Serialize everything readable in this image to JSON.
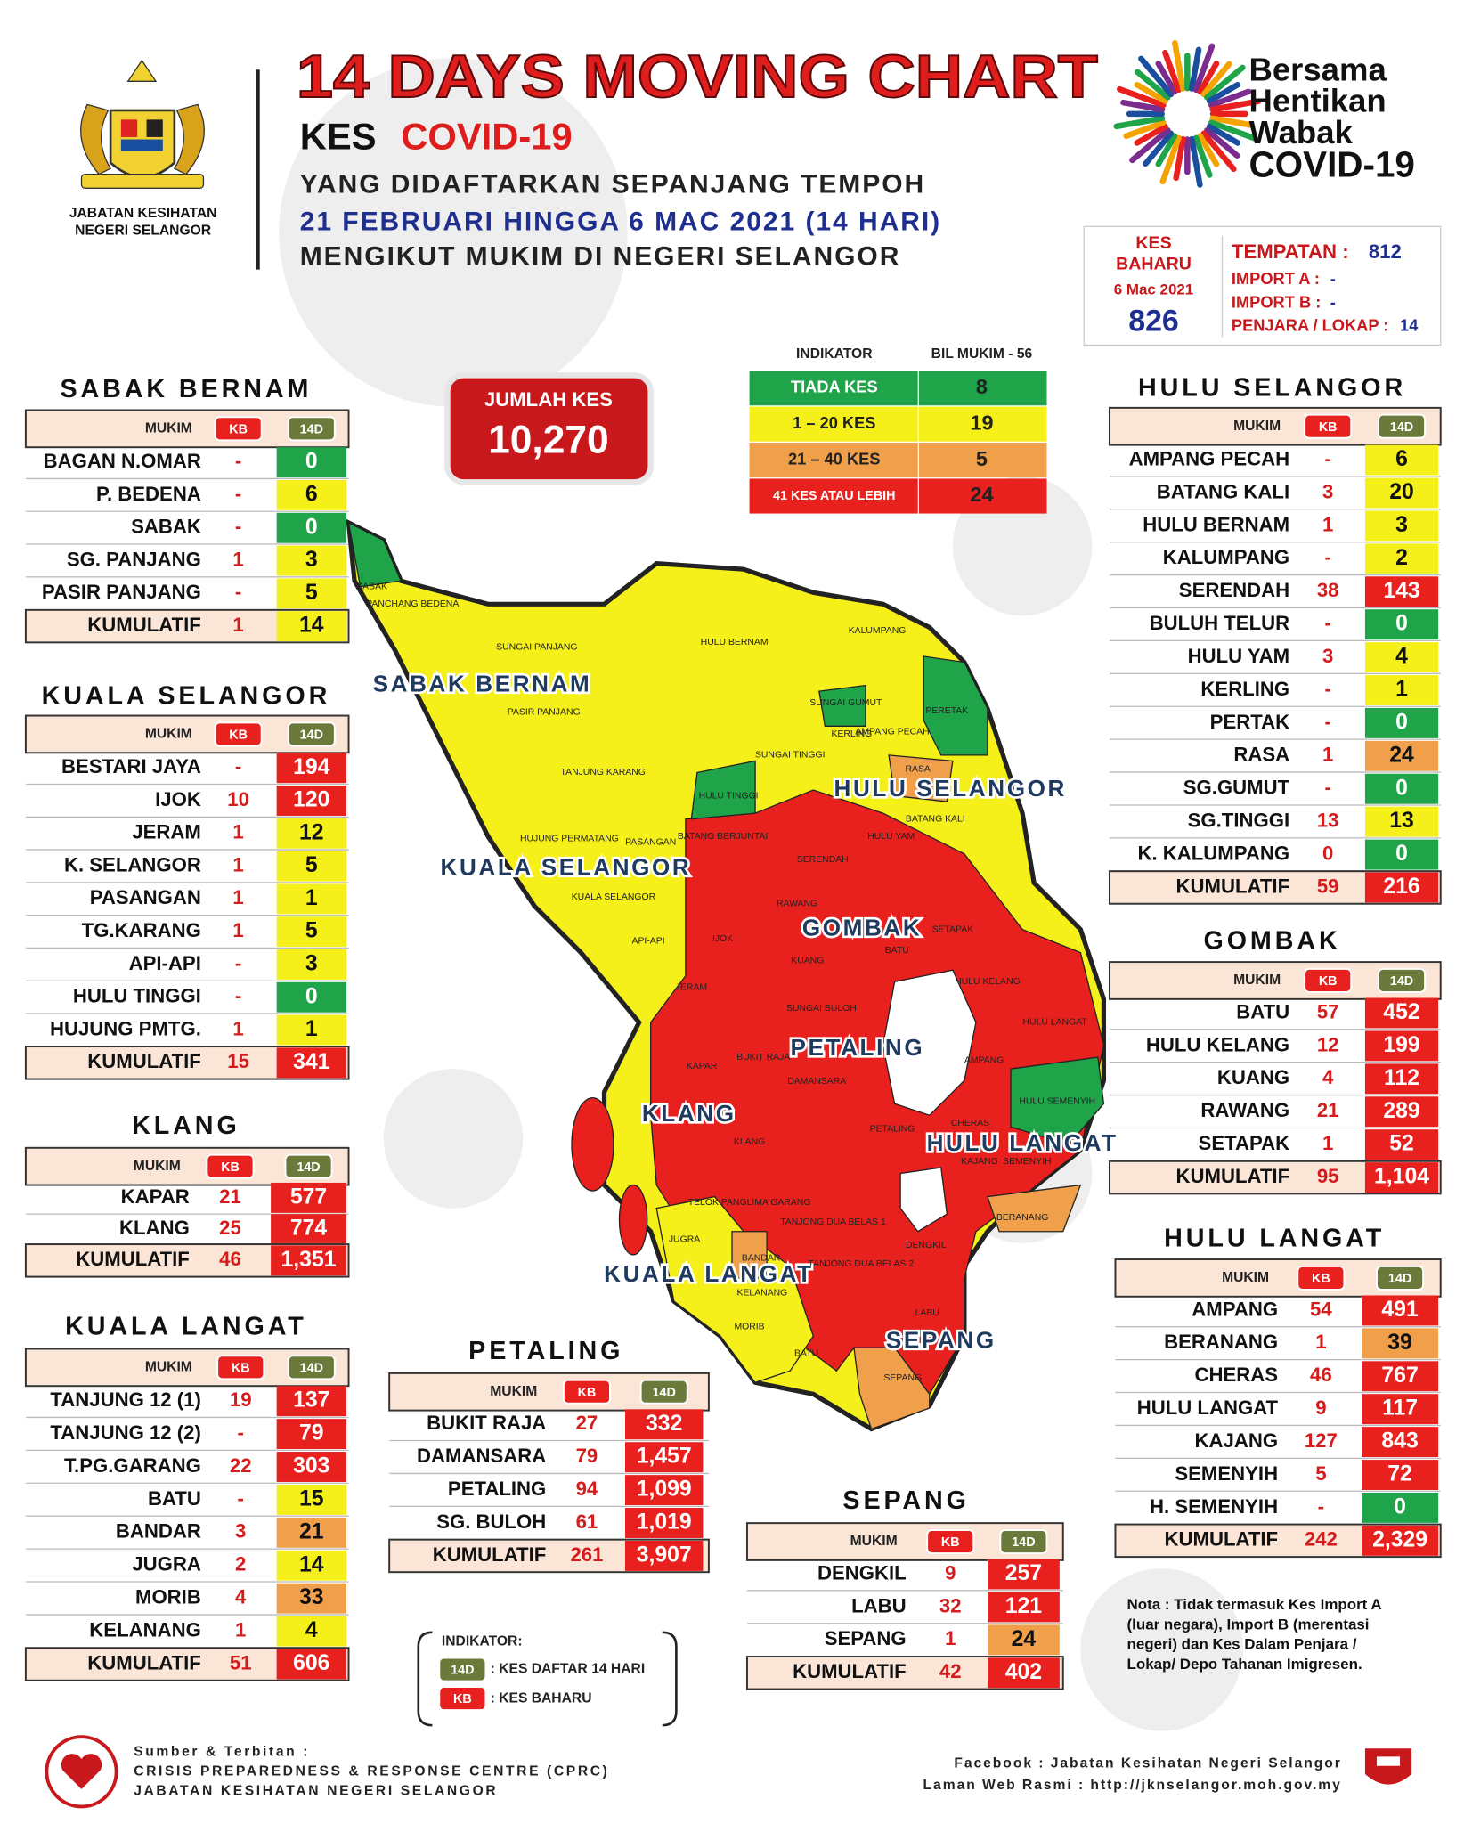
{
  "header": {
    "agency": [
      "JABATAN KESIHATAN",
      "NEGERI SELANGOR"
    ],
    "title": "14 DAYS MOVING CHART",
    "subtitle_prefix": "KES",
    "subtitle_main": "COVID-19",
    "lines": [
      "YANG DIDAFTARKAN SEPANJANG TEMPOH",
      "21 FEBRUARI HINGGA 6 MAC 2021 (14 HARI)",
      "MENGIKUT MUKIM DI NEGERI SELANGOR"
    ],
    "campaign": [
      "Bersama",
      "Hentikan",
      "Wabak",
      "COVID-19"
    ]
  },
  "new_cases": {
    "label": [
      "KES",
      "BAHARU"
    ],
    "date": "6 Mac 2021",
    "total": 826,
    "breakdown": [
      [
        "TEMPATAN :",
        812
      ],
      [
        "IMPORT A :",
        "-"
      ],
      [
        "IMPORT B :",
        "-"
      ],
      [
        "PENJARA / LOKAP :",
        14
      ]
    ]
  },
  "total_cases": {
    "label": "JUMLAH KES",
    "value": "10,270"
  },
  "indicator": {
    "headers": [
      "INDIKATOR",
      "BIL MUKIM - 56"
    ],
    "rows": [
      [
        "TIADA KES",
        8
      ],
      [
        "1 – 20 KES",
        19
      ],
      [
        "21 – 40 KES",
        5
      ],
      [
        "41 KES ATAU LEBIH",
        24
      ]
    ]
  },
  "table_header": [
    "MUKIM",
    "KB",
    "14D"
  ],
  "districts": [
    {
      "name": "SABAK BERNAM",
      "rows": [
        [
          "BAGAN N.OMAR",
          "-",
          0
        ],
        [
          "P. BEDENA",
          "-",
          6
        ],
        [
          "SABAK",
          "-",
          0
        ],
        [
          "SG. PANJANG",
          1,
          3
        ],
        [
          "PASIR PANJANG",
          "-",
          5
        ]
      ],
      "total": [
        "KUMULATIF",
        1,
        14
      ]
    },
    {
      "name": "KUALA SELANGOR",
      "rows": [
        [
          "BESTARI JAYA",
          "-",
          194
        ],
        [
          "IJOK",
          10,
          120
        ],
        [
          "JERAM",
          1,
          12
        ],
        [
          "K. SELANGOR",
          1,
          5
        ],
        [
          "PASANGAN",
          1,
          1
        ],
        [
          "TG.KARANG",
          1,
          5
        ],
        [
          "API-API",
          "-",
          3
        ],
        [
          "HULU TINGGI",
          "-",
          0
        ],
        [
          "HUJUNG PMTG.",
          1,
          1
        ]
      ],
      "total": [
        "KUMULATIF",
        15,
        341
      ]
    },
    {
      "name": "KLANG",
      "rows": [
        [
          "KAPAR",
          21,
          577
        ],
        [
          "KLANG",
          25,
          774
        ]
      ],
      "total": [
        "KUMULATIF",
        46,
        "1,351"
      ]
    },
    {
      "name": "KUALA LANGAT",
      "rows": [
        [
          "TANJUNG 12 (1)",
          19,
          137
        ],
        [
          "TANJUNG 12 (2)",
          "-",
          79
        ],
        [
          "T.PG.GARANG",
          22,
          303
        ],
        [
          "BATU",
          "-",
          15
        ],
        [
          "BANDAR",
          3,
          21
        ],
        [
          "JUGRA",
          2,
          14
        ],
        [
          "MORIB",
          4,
          33
        ],
        [
          "KELANANG",
          1,
          4
        ]
      ],
      "total": [
        "KUMULATIF",
        51,
        606
      ]
    },
    {
      "name": "PETALING",
      "rows": [
        [
          "BUKIT RAJA",
          27,
          332
        ],
        [
          "DAMANSARA",
          79,
          "1,457"
        ],
        [
          "PETALING",
          94,
          "1,099"
        ],
        [
          "SG. BULOH",
          61,
          "1,019"
        ]
      ],
      "total": [
        "KUMULATIF",
        261,
        "3,907"
      ]
    },
    {
      "name": "SEPANG",
      "rows": [
        [
          "DENGKIL",
          9,
          257
        ],
        [
          "LABU",
          32,
          121
        ],
        [
          "SEPANG",
          1,
          24
        ]
      ],
      "total": [
        "KUMULATIF",
        42,
        402
      ]
    },
    {
      "name": "HULU SELANGOR",
      "rows": [
        [
          "AMPANG PECAH",
          "-",
          6
        ],
        [
          "BATANG KALI",
          3,
          20
        ],
        [
          "HULU BERNAM",
          1,
          3
        ],
        [
          "KALUMPANG",
          "-",
          2
        ],
        [
          "SERENDAH",
          38,
          143
        ],
        [
          "BULUH TELUR",
          "-",
          0
        ],
        [
          "HULU YAM",
          3,
          4
        ],
        [
          "KERLING",
          "-",
          1
        ],
        [
          "PERTAK",
          "-",
          0
        ],
        [
          "RASA",
          1,
          24
        ],
        [
          "SG.GUMUT",
          "-",
          0
        ],
        [
          "SG.TINGGI",
          13,
          13
        ],
        [
          "K. KALUMPANG",
          0,
          0
        ]
      ],
      "total": [
        "KUMULATIF",
        59,
        216
      ]
    },
    {
      "name": "GOMBAK",
      "rows": [
        [
          "BATU",
          57,
          452
        ],
        [
          "HULU KELANG",
          12,
          199
        ],
        [
          "KUANG",
          4,
          112
        ],
        [
          "RAWANG",
          21,
          289
        ],
        [
          "SETAPAK",
          1,
          52
        ]
      ],
      "total": [
        "KUMULATIF",
        95,
        "1,104"
      ]
    },
    {
      "name": "HULU LANGAT",
      "rows": [
        [
          "AMPANG",
          54,
          491
        ],
        [
          "BERANANG",
          1,
          39
        ],
        [
          "CHERAS",
          46,
          767
        ],
        [
          "HULU LANGAT",
          9,
          117
        ],
        [
          "KAJANG",
          127,
          843
        ],
        [
          "SEMENYIH",
          5,
          72
        ],
        [
          "H. SEMENYIH",
          "-",
          0
        ]
      ],
      "total": [
        "KUMULATIF",
        242,
        "2,329"
      ]
    }
  ],
  "map": {
    "regions": [
      "SABAK BERNAM",
      "HULU SELANGOR",
      "KUALA SELANGOR",
      "GOMBAK",
      "PETALING",
      "KLANG",
      "HULU LANGAT",
      "KUALA LANGAT",
      "SEPANG"
    ],
    "labels": [
      "SABAK",
      "PANCHANG BEDENA",
      "SUNGAI PANJANG",
      "PASIR PANJANG",
      "HULU BERNAM",
      "KALUMPANG",
      "SUNGAI GUMUT",
      "PERETAK",
      "KERLING",
      "AMPANG PECAH",
      "SUNGAI TINGGI",
      "RASA",
      "HULU TINGGI",
      "TANJUNG KARANG",
      "BATANG KALI",
      "HULU YAM",
      "BATANG BERJUNTAI",
      "SERENDAH",
      "HUJUNG PERMATANG",
      "PASANGAN",
      "KUALA SELANGOR",
      "API-API",
      "IJOK",
      "RAWANG",
      "KUANG",
      "BATU",
      "SETAPAK",
      "HULU KELANG",
      "JERAM",
      "SUNGAI BULOH",
      "HULU LANGAT",
      "KAPAR",
      "BUKIT RAJA",
      "DAMANSARA",
      "AMPANG",
      "HULU SEMENYIH",
      "KLANG",
      "PETALING",
      "CHERAS",
      "KAJANG",
      "SEMENYIH",
      "TELOK PANGLIMA GARANG",
      "TANJONG DUA BELAS 1",
      "TANJONG DUA BELAS 2",
      "JUGRA",
      "BANDAR",
      "DENGKIL",
      "BERANANG",
      "KELANANG",
      "MORIB",
      "LABU",
      "BATU",
      "SEPANG"
    ]
  },
  "legend": {
    "title": "INDIKATOR:",
    "items": [
      [
        "14D",
        ": KES DAFTAR 14 HARI"
      ],
      [
        "KB",
        ": KES BAHARU"
      ]
    ]
  },
  "note": [
    "Nota : Tidak termasuk Kes Import A",
    "(luar negara), Import B (merentasi",
    "negeri) dan Kes Dalam Penjara /",
    "Lokap/ Depo Tahanan Imigresen."
  ],
  "footer": {
    "source": [
      "Sumber & Terbitan :",
      "CRISIS PREPAREDNESS & RESPONSE CENTRE (CPRC)",
      "JABATAN KESIHATAN NEGERI SELANGOR"
    ],
    "links": [
      "Facebook : Jabatan Kesihatan Negeri Selangor",
      "Laman Web Rasmi : http://jknselangor.moh.gov.my"
    ]
  }
}
